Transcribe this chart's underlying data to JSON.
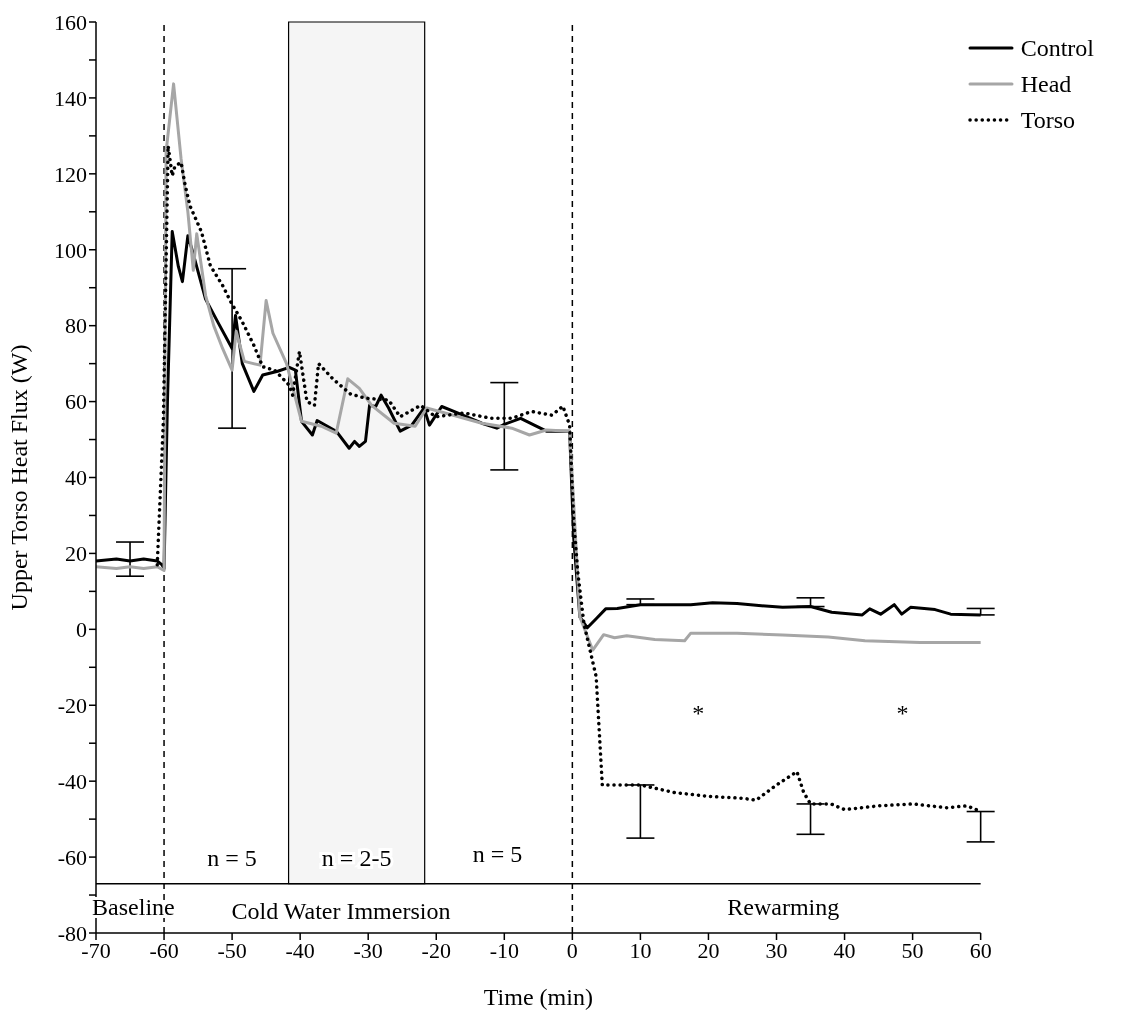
{
  "chart_data": {
    "type": "line",
    "xlabel": "Time (min)",
    "ylabel": "Upper Torso Heat Flux (W)",
    "xlim": [
      -70,
      60
    ],
    "xticks": [
      -70,
      -60,
      -50,
      -40,
      -30,
      -20,
      -10,
      0,
      10,
      20,
      30,
      40,
      50,
      60
    ],
    "ylim": [
      -80,
      160
    ],
    "yticks": [
      -80,
      {
        "value": -70,
        "label": null
      },
      -60,
      {
        "value": -50,
        "label": null
      },
      -40,
      {
        "value": -30,
        "label": null
      },
      -20,
      {
        "value": -10,
        "label": null
      },
      0,
      {
        "value": 10,
        "label": null
      },
      20,
      {
        "value": 30,
        "label": null
      },
      40,
      {
        "value": 50,
        "label": null
      },
      60,
      {
        "value": 70,
        "label": null
      },
      80,
      {
        "value": 90,
        "label": null
      },
      100,
      {
        "value": 110,
        "label": null
      },
      120,
      {
        "value": 130,
        "label": null
      },
      140,
      {
        "value": 150,
        "label": null
      },
      160
    ],
    "grid": false,
    "legend": "top right",
    "marker": "none",
    "series": [
      {
        "name": "Control",
        "color": "#000000",
        "line_style": "solid",
        "x": [
          -70,
          -67,
          -65,
          -63,
          -61,
          -60.3,
          -60,
          -59.5,
          -58.8,
          -57.9,
          -57.3,
          -56.5,
          -55.8,
          -53.9,
          -52,
          -50,
          -49.5,
          -48.5,
          -46.8,
          -45.5,
          -43.3,
          -41.6,
          -40.7,
          -39.8,
          -38.2,
          -37.5,
          -34.7,
          -32.8,
          -32,
          -31.3,
          -30.4,
          -29.8,
          -28.9,
          -28.1,
          -27,
          -25.3,
          -23.6,
          -21.8,
          -21,
          -19.2,
          -17.5,
          -13.3,
          -11.1,
          -10,
          -7.6,
          -5.6,
          -3.8,
          -0.4,
          0.2,
          1.1,
          2.2,
          3.5,
          4.9,
          6.6,
          10,
          17.4,
          20.6,
          24.2,
          27.8,
          30.9,
          35,
          38.1,
          42.6,
          43.7,
          45.3,
          47.3,
          48.4,
          49.7,
          53.3,
          55.6,
          60
        ],
        "values": [
          18,
          18.5,
          18,
          18.5,
          18,
          17,
          16,
          60,
          104.8,
          95.6,
          91.6,
          103.7,
          99.5,
          87,
          80.6,
          74,
          82.7,
          70,
          62.7,
          67,
          68,
          69,
          68.3,
          54.8,
          51.2,
          55,
          52.2,
          47.7,
          49.5,
          48.2,
          49.5,
          59,
          58.7,
          61.7,
          58.3,
          52.2,
          53.8,
          58.3,
          53.8,
          58.7,
          57.5,
          54.3,
          53,
          54,
          55.6,
          53.8,
          52.2,
          52.2,
          24,
          3.3,
          0.4,
          2.8,
          5.4,
          5.5,
          6.5,
          6.5,
          7,
          6.8,
          6.2,
          5.8,
          6,
          4.5,
          3.8,
          5.4,
          4,
          6.5,
          4,
          5.8,
          5.2,
          4,
          3.8
        ],
        "errors": [
          null,
          null,
          [
            14,
            23
          ],
          null,
          null,
          null,
          null,
          null,
          null,
          null,
          null,
          null,
          null,
          null,
          null,
          [
            53,
            95
          ],
          null,
          null,
          null,
          null,
          null,
          null,
          null,
          null,
          null,
          null,
          null,
          null,
          null,
          null,
          null,
          null,
          null,
          null,
          null,
          null,
          null,
          null,
          null,
          null,
          null,
          null,
          null,
          [
            42,
            65
          ],
          null,
          null,
          null,
          null,
          null,
          null,
          null,
          null,
          null,
          null,
          [
            6.5,
            8
          ],
          null,
          null,
          null,
          null,
          null,
          [
            6,
            8.3
          ],
          null,
          null,
          null,
          null,
          null,
          null,
          null,
          null,
          null,
          [
            3.8,
            5.5
          ]
        ]
      },
      {
        "name": "Head",
        "color": "#a6a6a6",
        "line_style": "solid",
        "x": [
          -70,
          -67,
          -65,
          -63,
          -61,
          -60,
          -59.7,
          -58.6,
          -57.5,
          -56.5,
          -55.7,
          -55.2,
          -53.9,
          -52.7,
          -51.4,
          -50,
          -49.4,
          -48.2,
          -45.9,
          -45,
          -44,
          -42,
          -39.8,
          -36.9,
          -34.7,
          -33,
          -31.3,
          -29.5,
          -26.2,
          -23.1,
          -21.4,
          -17.5,
          -13.3,
          -8.9,
          -6.3,
          -3.8,
          -0.4,
          0.2,
          1.1,
          3,
          4.6,
          6.2,
          8,
          12.1,
          16.5,
          17.4,
          24.2,
          30.9,
          37.6,
          43,
          51.1,
          60
        ],
        "values": [
          16.5,
          16,
          16.5,
          16,
          16.5,
          15.5,
          125.8,
          143.7,
          124,
          110,
          94.6,
          104.2,
          88,
          80,
          74,
          68.3,
          78.5,
          70.6,
          69.6,
          86.6,
          78,
          70,
          54.8,
          53.5,
          51.7,
          66,
          63.5,
          59,
          54.3,
          53.5,
          58.3,
          56.4,
          54.3,
          53,
          51.2,
          52.5,
          52.2,
          33,
          3.3,
          -5.5,
          -1.4,
          -2.2,
          -1.7,
          -2.7,
          -3,
          -1,
          -1,
          -1.5,
          -2,
          -3,
          -3.5,
          -3.5
        ]
      },
      {
        "name": "Torso",
        "color": "#000000",
        "line_style": "dotted",
        "x": [
          -61,
          -60.1,
          -59.4,
          -58.8,
          -58.4,
          -57.5,
          -56.9,
          -56.2,
          -54.5,
          -53.2,
          -51.4,
          -50.2,
          -48.5,
          -46.8,
          -45.5,
          -43.7,
          -41.6,
          -41.1,
          -40.1,
          -39,
          -37.9,
          -37.3,
          -35.2,
          -32.6,
          -30.4,
          -27,
          -25.3,
          -22.3,
          -20.1,
          -15.9,
          -12,
          -8.9,
          -6,
          -3,
          -1.4,
          -0.4,
          0.2,
          0.8,
          1.7,
          3.5,
          4.4,
          10,
          15,
          20,
          25,
          27,
          30,
          33,
          34,
          35,
          38,
          40,
          45,
          50,
          55,
          58,
          60
        ],
        "values": [
          17,
          55,
          127.4,
          119.5,
          122,
          123,
          117,
          111.6,
          104.7,
          95.8,
          90.6,
          86.3,
          81,
          74.8,
          69.2,
          68.2,
          64.3,
          61.7,
          73.2,
          60,
          59,
          70,
          66,
          62,
          60.9,
          60.4,
          56,
          59,
          56,
          57,
          55.6,
          55.6,
          57.4,
          56.4,
          58.8,
          53.8,
          28.8,
          15,
          1.5,
          -12.5,
          -41,
          -41,
          -43,
          -44,
          -44.5,
          -45,
          -41,
          -37.5,
          -43,
          -46,
          -46,
          -47.5,
          -46.5,
          -46,
          -47,
          -46.5,
          -48
        ],
        "errors": [
          null,
          null,
          null,
          null,
          null,
          null,
          null,
          null,
          null,
          null,
          null,
          null,
          null,
          null,
          null,
          null,
          null,
          null,
          null,
          null,
          null,
          null,
          null,
          null,
          null,
          null,
          null,
          null,
          null,
          null,
          null,
          null,
          null,
          null,
          null,
          null,
          null,
          null,
          null,
          null,
          null,
          [
            -55,
            -41
          ],
          null,
          null,
          null,
          null,
          null,
          null,
          null,
          [
            -54,
            -46
          ],
          null,
          null,
          null,
          null,
          null,
          null,
          [
            -56,
            -48
          ]
        ]
      }
    ],
    "ref_lines": [
      {
        "axis": "x",
        "value": -60,
        "label": null,
        "line_style": "dashed",
        "color": "#000000"
      },
      {
        "axis": "x",
        "value": 0,
        "label": null,
        "line_style": "dashed",
        "color": "#000000"
      },
      {
        "axis": "y",
        "value": -67,
        "label": null,
        "line_style": "solid",
        "color": "#000000"
      }
    ],
    "bands": [
      {
        "axis": "x",
        "from": -41.7,
        "to": -21.7,
        "label": null,
        "color": "#000000"
      }
    ],
    "annotations": [
      "n = 5",
      "n = 2-5",
      "n = 5",
      "Baseline",
      "Cold Water Immersion",
      "Rewarming",
      "*",
      "*"
    ]
  }
}
